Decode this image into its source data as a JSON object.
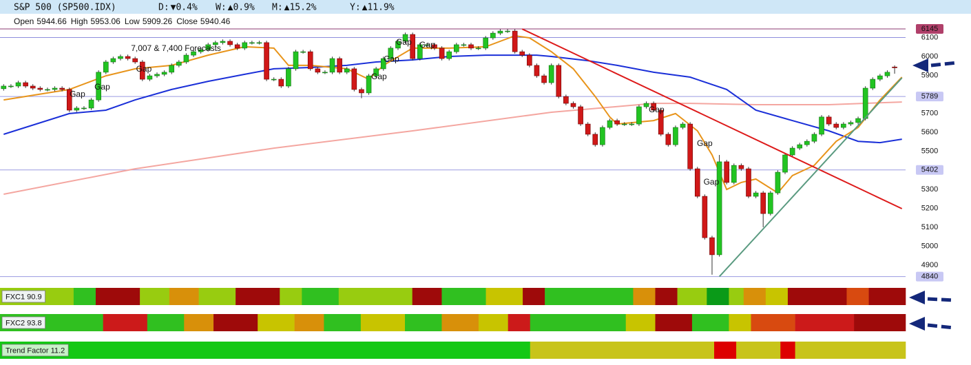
{
  "header": {
    "title": "S&P 500 (SP500.IDX)",
    "changes": [
      {
        "label": "D:",
        "value": "▼0.4%",
        "color": "#d01010"
      },
      {
        "label": "W:",
        "value": "▲0.9%",
        "color": "#10a010"
      },
      {
        "label": "M:",
        "value": "▲15.2%",
        "color": "#10a010"
      },
      {
        "label": "Y:",
        "value": "▲11.9%",
        "color": "#10a010"
      }
    ],
    "ohlc_labels": [
      "Open",
      "High",
      "Low",
      "Close"
    ]
  },
  "chart_data": {
    "type": "candlestick",
    "open": [
      5830,
      5844,
      5844,
      5862,
      5844,
      5833,
      5826,
      5826,
      5833,
      5826,
      5717,
      5728,
      5728,
      5771,
      5917,
      5971,
      5989,
      6000,
      5989,
      5971,
      5880,
      5898,
      5906,
      5917,
      5953,
      5971,
      6007,
      6025,
      6036,
      6062,
      6073,
      6080,
      6062,
      6044,
      6073,
      6073,
      6073,
      5880,
      5880,
      5844,
      5935,
      6025,
      6025,
      5935,
      5917,
      5917,
      5989,
      5917,
      5935,
      5826,
      5808,
      5898,
      5935,
      5989,
      6044,
      6080,
      6116,
      5989,
      6062,
      6062,
      6044,
      5989,
      6025,
      6062,
      6062,
      6044,
      6044,
      6098,
      6123,
      6134,
      6134,
      6025,
      6007,
      5953,
      5898,
      5862,
      5953,
      5789,
      5753,
      5735,
      5644,
      5590,
      5535,
      5626,
      5662,
      5644,
      5644,
      5644,
      5735,
      5753,
      5717,
      5590,
      5535,
      5626,
      5644,
      5408,
      5263,
      5045,
      4955,
      5445,
      5336,
      5426,
      5408,
      5263,
      5281,
      5172,
      5281,
      5390,
      5481,
      5517,
      5535,
      5553,
      5590,
      5681,
      5644,
      5626,
      5644,
      5652,
      5673,
      5833,
      5880,
      5898,
      5944.66
    ],
    "high": [
      5854,
      5854,
      5872,
      5872,
      5854,
      5843,
      5836,
      5843,
      5843,
      5836,
      5738,
      5738,
      5781,
      5927,
      5981,
      5999,
      6010,
      6010,
      5999,
      5981,
      5908,
      5916,
      5927,
      5963,
      5981,
      6017,
      6035,
      6046,
      6072,
      6083,
      6090,
      6090,
      6072,
      6083,
      6083,
      6083,
      6083,
      5890,
      5890,
      5945,
      6035,
      6035,
      6035,
      5945,
      5927,
      5999,
      5999,
      5945,
      5945,
      5836,
      5908,
      5945,
      5999,
      6054,
      6090,
      6126,
      6126,
      6072,
      6072,
      6072,
      6054,
      6035,
      6072,
      6072,
      6072,
      6054,
      6108,
      6133,
      6144,
      6145,
      6144,
      6035,
      6017,
      5963,
      5908,
      5963,
      5963,
      5799,
      5763,
      5745,
      5654,
      5600,
      5636,
      5672,
      5672,
      5654,
      5654,
      5745,
      5763,
      5763,
      5727,
      5600,
      5636,
      5654,
      5654,
      5418,
      5273,
      5055,
      5481,
      5455,
      5436,
      5436,
      5418,
      5291,
      5291,
      5291,
      5400,
      5491,
      5527,
      5545,
      5563,
      5600,
      5691,
      5691,
      5654,
      5654,
      5662,
      5683,
      5843,
      5890,
      5908,
      5927,
      5953.06
    ],
    "low": [
      5820,
      5834,
      5834,
      5834,
      5823,
      5816,
      5816,
      5816,
      5816,
      5707,
      5707,
      5718,
      5718,
      5761,
      5907,
      5961,
      5979,
      5979,
      5961,
      5870,
      5870,
      5888,
      5896,
      5907,
      5943,
      5961,
      5997,
      6015,
      6026,
      6052,
      6063,
      6052,
      6034,
      6034,
      6063,
      6063,
      5870,
      5870,
      5834,
      5834,
      5925,
      6015,
      5925,
      5907,
      5907,
      5907,
      5907,
      5907,
      5816,
      5780,
      5798,
      5888,
      5925,
      5979,
      6034,
      6070,
      5979,
      5979,
      6052,
      6034,
      5979,
      5979,
      6015,
      6052,
      6034,
      6034,
      6034,
      6088,
      6113,
      6124,
      6015,
      5997,
      5943,
      5888,
      5852,
      5852,
      5779,
      5743,
      5725,
      5634,
      5580,
      5525,
      5525,
      5616,
      5634,
      5634,
      5634,
      5634,
      5725,
      5707,
      5580,
      5525,
      5525,
      5616,
      5398,
      5253,
      5035,
      4850,
      4945,
      5326,
      5326,
      5398,
      5253,
      5253,
      5100,
      5162,
      5271,
      5380,
      5471,
      5507,
      5525,
      5543,
      5580,
      5634,
      5616,
      5616,
      5634,
      5642,
      5663,
      5823,
      5870,
      5888,
      5909.26
    ],
    "close": [
      5844,
      5844,
      5862,
      5844,
      5833,
      5826,
      5826,
      5833,
      5826,
      5717,
      5728,
      5728,
      5771,
      5917,
      5971,
      5989,
      6000,
      5989,
      5971,
      5880,
      5898,
      5906,
      5917,
      5953,
      5971,
      6007,
      6025,
      6036,
      6062,
      6073,
      6080,
      6062,
      6044,
      6073,
      6073,
      6073,
      5880,
      5880,
      5844,
      5935,
      6025,
      6025,
      5935,
      5917,
      5917,
      5989,
      5917,
      5935,
      5826,
      5808,
      5898,
      5935,
      5989,
      6044,
      6080,
      6116,
      5989,
      6062,
      6062,
      6044,
      5989,
      6025,
      6062,
      6062,
      6044,
      6044,
      6098,
      6123,
      6134,
      6134,
      6025,
      6007,
      5953,
      5898,
      5862,
      5953,
      5789,
      5753,
      5735,
      5644,
      5590,
      5535,
      5626,
      5662,
      5644,
      5644,
      5644,
      5735,
      5753,
      5717,
      5590,
      5535,
      5626,
      5644,
      5408,
      5263,
      5045,
      4955,
      5445,
      5336,
      5426,
      5408,
      5263,
      5281,
      5172,
      5281,
      5390,
      5481,
      5517,
      5535,
      5553,
      5590,
      5681,
      5644,
      5626,
      5644,
      5652,
      5673,
      5833,
      5880,
      5898,
      5917,
      5940.46
    ],
    "up_color": "#22c422",
    "down_color": "#d01818",
    "xlim": [
      -0.5,
      123.5
    ],
    "ylim": [
      4824,
      6196
    ],
    "yticks": [
      4900,
      5000,
      5100,
      5200,
      5300,
      5500,
      5600,
      5700,
      5900,
      6000
    ],
    "series": [
      {
        "color": "#f4a6a0",
        "x": [
          0,
          18,
          37,
          56,
          75,
          89,
          94,
          103,
          113,
          123
        ],
        "values": [
          5274,
          5408,
          5517,
          5608,
          5706,
          5753,
          5753,
          5746,
          5746,
          5760
        ]
      },
      {
        "color": "#1a2fd8",
        "x": [
          0,
          9,
          14,
          18,
          23,
          28,
          33,
          37,
          42,
          47,
          51,
          56,
          61,
          66,
          70,
          73,
          75,
          80,
          84,
          89,
          94,
          99,
          103,
          108,
          113,
          117,
          120,
          123
        ],
        "values": [
          5590,
          5699,
          5717,
          5771,
          5826,
          5869,
          5906,
          5935,
          5942,
          5953,
          5971,
          5982,
          6000,
          6007,
          6007,
          6007,
          6000,
          5978,
          5953,
          5917,
          5891,
          5826,
          5717,
          5662,
          5608,
          5553,
          5546,
          5564
        ]
      },
      {
        "color": "#e8941a",
        "x": [
          0,
          9,
          14,
          18,
          23,
          28,
          33,
          37,
          39,
          42,
          47,
          50,
          52,
          56,
          61,
          66,
          70,
          72,
          75,
          78,
          81,
          83,
          84,
          89,
          92,
          95,
          97,
          99,
          101,
          103,
          106,
          108,
          111,
          114,
          117,
          120,
          123
        ],
        "values": [
          5771,
          5826,
          5898,
          5935,
          5953,
          6007,
          6051,
          6044,
          5953,
          5953,
          5935,
          5880,
          5953,
          6044,
          6044,
          6051,
          6109,
          6098,
          6025,
          5935,
          5789,
          5681,
          5644,
          5662,
          5699,
          5608,
          5481,
          5299,
          5336,
          5354,
          5281,
          5372,
          5426,
          5553,
          5626,
          5771,
          5891
        ]
      }
    ],
    "trendlines": [
      {
        "color": "#dd1a1a",
        "x": [
          71,
          123
        ],
        "values": [
          6145,
          5198
        ]
      },
      {
        "color": "#5a9a80",
        "x": [
          98,
          123
        ],
        "values": [
          4840,
          5887
        ]
      }
    ],
    "levels": [
      {
        "value": 6145,
        "color": "#8b3a70",
        "box": "#b0406a",
        "text_color": "#ffffff"
      },
      {
        "value": 6100,
        "color": "#8c8cdc"
      },
      {
        "value": 5789,
        "color": "#9a9ae0",
        "box": "#c8c8f4",
        "text_color": "#222222"
      },
      {
        "value": 5402,
        "color": "#9a9ae0",
        "box": "#c8c8f4",
        "text_color": "#222222"
      },
      {
        "value": 4840,
        "color": "#9a9ae0",
        "box": "#c8c8f4",
        "text_color": "#222222"
      }
    ],
    "annotations": [
      {
        "text": "Gap",
        "x": 13.5,
        "y": 5837,
        "color": "#111111"
      },
      {
        "text": "Gap",
        "x": 10.1,
        "y": 5800,
        "color": "#d02020"
      },
      {
        "text": "7,007 & 7,400 Forecasts",
        "x": 23.6,
        "y": 6040,
        "color": "#111111"
      },
      {
        "text": "Gap",
        "x": 19.2,
        "y": 5931,
        "color": "#d02020"
      },
      {
        "text": "Gap",
        "x": 54.8,
        "y": 6073,
        "color": "#111111"
      },
      {
        "text": "Gap",
        "x": 53.1,
        "y": 5985,
        "color": "#111111"
      },
      {
        "text": "Gap",
        "x": 51.4,
        "y": 5891,
        "color": "#111111"
      },
      {
        "text": "Gap",
        "x": 58,
        "y": 6058,
        "color": "#d02020"
      },
      {
        "text": "Gap",
        "x": 89.4,
        "y": 5717,
        "color": "#111111"
      },
      {
        "text": "Gap",
        "x": 96,
        "y": 5539,
        "color": "#d02020"
      },
      {
        "text": "Gap",
        "x": 96.9,
        "y": 5336,
        "color": "#d02020"
      }
    ],
    "strips": [
      {
        "label": "FXC1 90.9",
        "label_bg": "#eef2f2",
        "spans": [
          {
            "color": "#98cc10",
            "span": 10
          },
          {
            "color": "#30c020",
            "span": 3
          },
          {
            "color": "#9e0a0a",
            "span": 6
          },
          {
            "color": "#98cc10",
            "span": 4
          },
          {
            "color": "#d8900a",
            "span": 4
          },
          {
            "color": "#98cc10",
            "span": 5
          },
          {
            "color": "#9e0a0a",
            "span": 6
          },
          {
            "color": "#98cc10",
            "span": 3
          },
          {
            "color": "#30c020",
            "span": 5
          },
          {
            "color": "#98cc10",
            "span": 10
          },
          {
            "color": "#9e0a0a",
            "span": 4
          },
          {
            "color": "#30c020",
            "span": 6
          },
          {
            "color": "#c8c400",
            "span": 5
          },
          {
            "color": "#9e0a0a",
            "span": 3
          },
          {
            "color": "#30c020",
            "span": 12
          },
          {
            "color": "#d8900a",
            "span": 3
          },
          {
            "color": "#9e0a0a",
            "span": 3
          },
          {
            "color": "#98cc10",
            "span": 4
          },
          {
            "color": "#0a9a18",
            "span": 3
          },
          {
            "color": "#98cc10",
            "span": 2
          },
          {
            "color": "#d8900a",
            "span": 3
          },
          {
            "color": "#c8c400",
            "span": 3
          },
          {
            "color": "#9e0a0a",
            "span": 8
          },
          {
            "color": "#d84a10",
            "span": 3
          },
          {
            "color": "#9e0a0a",
            "span": 5
          }
        ]
      },
      {
        "label": "FXC2 93.8",
        "label_bg": "#eef2f2",
        "spans": [
          {
            "color": "#30c020",
            "span": 14
          },
          {
            "color": "#cc1a1a",
            "span": 6
          },
          {
            "color": "#30c020",
            "span": 5
          },
          {
            "color": "#d8900a",
            "span": 4
          },
          {
            "color": "#9e0a0a",
            "span": 6
          },
          {
            "color": "#c8c400",
            "span": 5
          },
          {
            "color": "#d8900a",
            "span": 4
          },
          {
            "color": "#30c020",
            "span": 5
          },
          {
            "color": "#c8c400",
            "span": 6
          },
          {
            "color": "#30c020",
            "span": 5
          },
          {
            "color": "#d8900a",
            "span": 5
          },
          {
            "color": "#c8c400",
            "span": 4
          },
          {
            "color": "#cc1a1a",
            "span": 3
          },
          {
            "color": "#30c020",
            "span": 13
          },
          {
            "color": "#c8c400",
            "span": 4
          },
          {
            "color": "#9e0a0a",
            "span": 5
          },
          {
            "color": "#30c020",
            "span": 5
          },
          {
            "color": "#c8c400",
            "span": 3
          },
          {
            "color": "#d84a10",
            "span": 6
          },
          {
            "color": "#cc1a1a",
            "span": 8
          },
          {
            "color": "#9e0a0a",
            "span": 7
          }
        ]
      },
      {
        "label": "Trend Factor 11.2",
        "label_bg": "#c8f0c8",
        "spans": [
          {
            "color": "#14c814",
            "span": 72
          },
          {
            "color": "#c8c41a",
            "span": 25
          },
          {
            "color": "#dd0000",
            "span": 3
          },
          {
            "color": "#c8c41a",
            "span": 6
          },
          {
            "color": "#dd0000",
            "span": 2
          },
          {
            "color": "#c8c41a",
            "span": 15
          }
        ]
      }
    ]
  }
}
